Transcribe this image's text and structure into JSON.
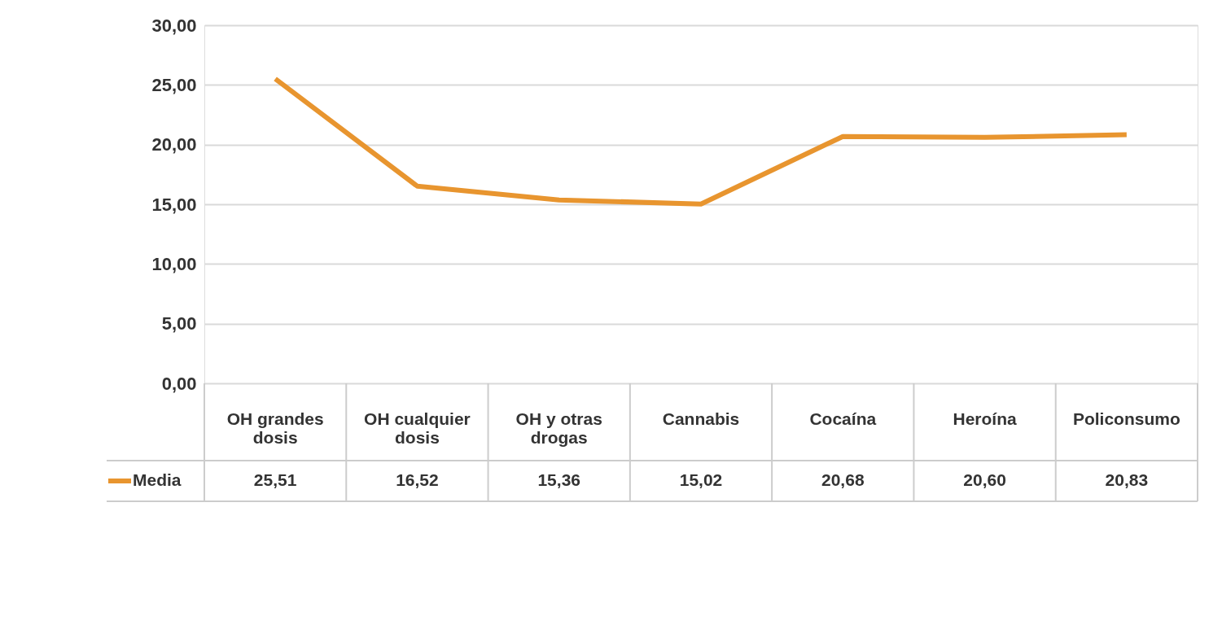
{
  "chart_data": {
    "type": "line",
    "categories": [
      "OH grandes dosis",
      "OH cualquier dosis",
      "OH y otras drogas",
      "Cannabis",
      "Cocaína",
      "Heroína",
      "Policonsumo"
    ],
    "series": [
      {
        "name": "Media",
        "color": "#e8952f",
        "values": [
          25.51,
          16.52,
          15.36,
          15.02,
          20.68,
          20.6,
          20.83
        ]
      }
    ],
    "ylim": [
      0,
      30
    ],
    "yticks": [
      {
        "value": 0,
        "label": "0,00"
      },
      {
        "value": 5,
        "label": "5,00"
      },
      {
        "value": 10,
        "label": "10,00"
      },
      {
        "value": 15,
        "label": "15,00"
      },
      {
        "value": 20,
        "label": "20,00"
      },
      {
        "value": 25,
        "label": "25,00"
      },
      {
        "value": 30,
        "label": "30,00"
      }
    ],
    "grid": "y",
    "legend": "bottom left",
    "value_labels": [
      "25,51",
      "16,52",
      "15,36",
      "15,02",
      "20,68",
      "20,60",
      "20,83"
    ],
    "marker": "none",
    "line_style": "solid"
  }
}
